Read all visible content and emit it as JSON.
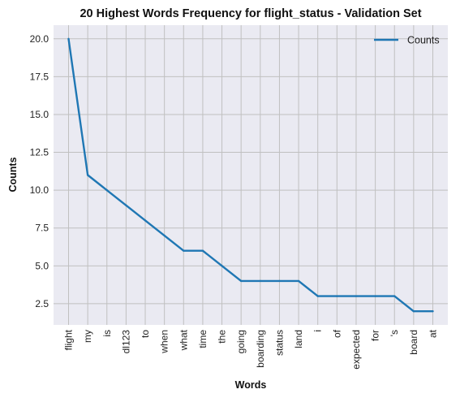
{
  "chart_data": {
    "type": "line",
    "title": "20 Highest Words Frequency for flight_status - Validation Set",
    "xlabel": "Words",
    "ylabel": "Counts",
    "categories": [
      "flight",
      "my",
      "is",
      "dl123",
      "to",
      "when",
      "what",
      "time",
      "the",
      "going",
      "boarding",
      "status",
      "land",
      "i",
      "of",
      "expected",
      "for",
      "'s",
      "board",
      "at"
    ],
    "series": [
      {
        "name": "Counts",
        "values": [
          20,
          11,
          10,
          9,
          8,
          7,
          6,
          6,
          5,
          4,
          4,
          4,
          4,
          3,
          3,
          3,
          3,
          3,
          2,
          2
        ],
        "color": "#1f77b4"
      }
    ],
    "ylim": [
      1.1,
      20.9
    ],
    "yticks": [
      "2.5",
      "5.0",
      "7.5",
      "10.0",
      "12.5",
      "15.0",
      "17.5",
      "20.0"
    ],
    "grid": true,
    "legend_position": "top-right",
    "background_color": "#eaeaf2",
    "grid_color": "#c0c0c0"
  }
}
